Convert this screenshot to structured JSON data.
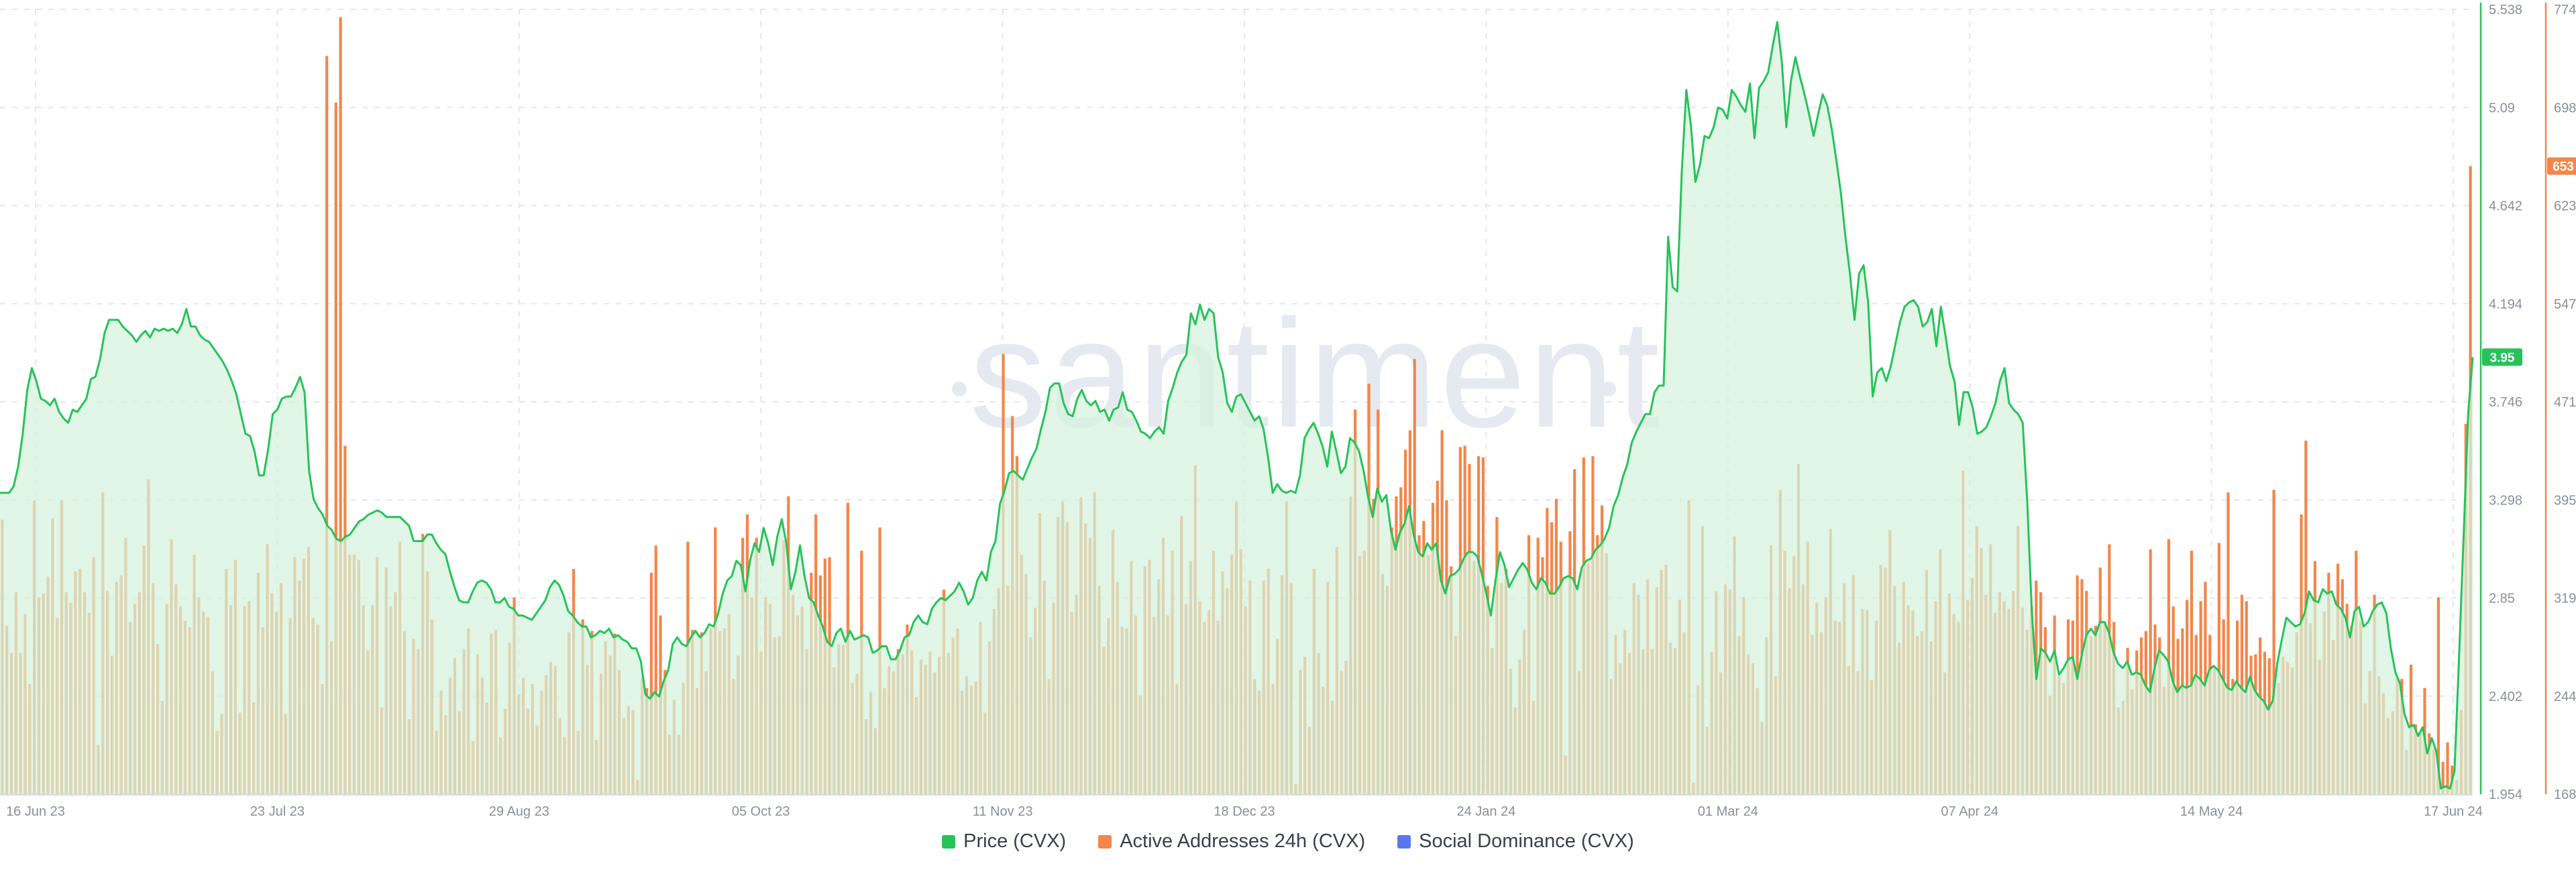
{
  "watermark": "santiment",
  "legend": [
    {
      "label": "Price (CVX)",
      "color": "#26c35a"
    },
    {
      "label": "Active Addresses 24h (CVX)",
      "color": "#f3864a"
    },
    {
      "label": "Social Dominance (CVX)",
      "color": "#5a77ee"
    }
  ],
  "chart_data": {
    "type": "bar+line",
    "x_ticks": [
      "16 Jun 23",
      "23 Jul 23",
      "29 Aug 23",
      "05 Oct 23",
      "11 Nov 23",
      "18 Dec 23",
      "24 Jan 24",
      "01 Mar 24",
      "07 Apr 24",
      "14 May 24",
      "17 Jun 24"
    ],
    "price_axis": {
      "ticks": [
        "5.538",
        "5.09",
        "4.642",
        "4.194",
        "3.746",
        "3.298",
        "2.85",
        "2.402",
        "1.954"
      ],
      "min": 1.954,
      "max": 5.538
    },
    "active_addresses_axis": {
      "ticks": [
        "774",
        "698",
        "623",
        "547",
        "471",
        "395",
        "319",
        "244",
        "168"
      ],
      "min": 168,
      "max": 774
    },
    "current_price_badge": "3.95",
    "current_active_addresses_badge": "653",
    "series": [
      {
        "name": "Price (CVX)",
        "color": "#26c35a",
        "values": [
          3.33,
          3.33,
          3.33,
          3.36,
          3.45,
          3.6,
          3.8,
          3.9,
          3.84,
          3.76,
          3.75,
          3.73,
          3.76,
          3.7,
          3.67,
          3.65,
          3.71,
          3.7,
          3.73,
          3.76,
          3.85,
          3.86,
          3.94,
          4.06,
          4.12,
          4.12,
          4.12,
          4.09,
          4.07,
          4.05,
          4.02,
          4.05,
          4.07,
          4.04,
          4.08,
          4.07,
          4.08,
          4.07,
          4.08,
          4.06,
          4.1,
          4.17,
          4.09,
          4.09,
          4.05,
          4.03,
          4.02,
          3.99,
          3.96,
          3.93,
          3.89,
          3.84,
          3.78,
          3.69,
          3.6,
          3.59,
          3.52,
          3.41,
          3.41,
          3.53,
          3.69,
          3.71,
          3.76,
          3.77,
          3.77,
          3.81,
          3.86,
          3.79,
          3.43,
          3.3,
          3.26,
          3.23,
          3.18,
          3.16,
          3.12,
          3.11,
          3.13,
          3.14,
          3.17,
          3.2,
          3.21,
          3.23,
          3.24,
          3.25,
          3.24,
          3.22,
          3.22,
          3.22,
          3.22,
          3.2,
          3.18,
          3.11,
          3.11,
          3.11,
          3.14,
          3.14,
          3.1,
          3.07,
          3.05,
          2.97,
          2.9,
          2.84,
          2.83,
          2.83,
          2.88,
          2.92,
          2.93,
          2.92,
          2.89,
          2.83,
          2.83,
          2.85,
          2.81,
          2.8,
          2.77,
          2.77,
          2.76,
          2.75,
          2.78,
          2.81,
          2.84,
          2.9,
          2.93,
          2.91,
          2.86,
          2.79,
          2.77,
          2.74,
          2.72,
          2.72,
          2.67,
          2.68,
          2.7,
          2.69,
          2.71,
          2.67,
          2.68,
          2.66,
          2.65,
          2.62,
          2.62,
          2.56,
          2.41,
          2.39,
          2.42,
          2.4,
          2.47,
          2.52,
          2.64,
          2.67,
          2.64,
          2.63,
          2.67,
          2.7,
          2.67,
          2.69,
          2.73,
          2.72,
          2.78,
          2.87,
          2.93,
          2.95,
          3.02,
          3.0,
          2.88,
          3.02,
          3.1,
          3.06,
          3.17,
          3.1,
          3.0,
          3.13,
          3.21,
          3.1,
          2.89,
          2.97,
          3.09,
          2.95,
          2.85,
          2.83,
          2.77,
          2.72,
          2.65,
          2.63,
          2.69,
          2.71,
          2.65,
          2.7,
          2.66,
          2.67,
          2.68,
          2.67,
          2.6,
          2.61,
          2.63,
          2.63,
          2.57,
          2.57,
          2.61,
          2.67,
          2.68,
          2.74,
          2.77,
          2.74,
          2.73,
          2.8,
          2.83,
          2.85,
          2.84,
          2.86,
          2.88,
          2.92,
          2.88,
          2.82,
          2.85,
          2.93,
          2.97,
          2.93,
          3.06,
          3.11,
          3.28,
          3.34,
          3.42,
          3.43,
          3.41,
          3.39,
          3.44,
          3.49,
          3.53,
          3.62,
          3.7,
          3.81,
          3.83,
          3.83,
          3.74,
          3.69,
          3.68,
          3.76,
          3.8,
          3.75,
          3.73,
          3.75,
          3.7,
          3.71,
          3.66,
          3.71,
          3.72,
          3.79,
          3.71,
          3.7,
          3.66,
          3.61,
          3.6,
          3.58,
          3.61,
          3.63,
          3.6,
          3.75,
          3.81,
          3.88,
          3.93,
          3.96,
          4.15,
          4.1,
          4.19,
          4.12,
          4.17,
          4.15,
          3.95,
          3.88,
          3.74,
          3.7,
          3.77,
          3.78,
          3.74,
          3.7,
          3.66,
          3.68,
          3.62,
          3.49,
          3.33,
          3.37,
          3.34,
          3.33,
          3.34,
          3.33,
          3.41,
          3.58,
          3.62,
          3.65,
          3.6,
          3.54,
          3.45,
          3.61,
          3.52,
          3.42,
          3.45,
          3.58,
          3.56,
          3.52,
          3.43,
          3.31,
          3.22,
          3.35,
          3.29,
          3.32,
          3.16,
          3.07,
          3.15,
          3.19,
          3.27,
          3.14,
          3.06,
          3.04,
          3.1,
          3.07,
          3.1,
          2.93,
          2.87,
          2.95,
          2.96,
          2.98,
          3.03,
          3.06,
          3.06,
          3.04,
          2.96,
          2.87,
          2.77,
          2.93,
          3.06,
          3.0,
          2.9,
          2.94,
          2.98,
          3.01,
          2.98,
          2.92,
          2.89,
          2.94,
          2.92,
          2.87,
          2.87,
          2.9,
          2.94,
          2.95,
          2.94,
          2.89,
          2.99,
          3.02,
          3.03,
          3.07,
          3.09,
          3.12,
          3.17,
          3.27,
          3.32,
          3.4,
          3.46,
          3.56,
          3.61,
          3.65,
          3.69,
          3.69,
          3.79,
          3.82,
          3.82,
          4.5,
          4.27,
          4.25,
          4.8,
          5.17,
          5.01,
          4.75,
          4.83,
          4.96,
          4.95,
          5.0,
          5.09,
          5.08,
          5.04,
          5.17,
          5.14,
          5.1,
          5.07,
          5.2,
          4.95,
          5.18,
          5.21,
          5.25,
          5.37,
          5.48,
          5.3,
          5.0,
          5.21,
          5.32,
          5.23,
          5.15,
          5.06,
          4.96,
          5.06,
          5.15,
          5.1,
          4.99,
          4.85,
          4.7,
          4.5,
          4.33,
          4.12,
          4.33,
          4.37,
          4.2,
          3.77,
          3.88,
          3.9,
          3.84,
          3.91,
          4.01,
          4.11,
          4.18,
          4.2,
          4.21,
          4.18,
          4.09,
          4.11,
          4.17,
          4.0,
          4.18,
          4.05,
          3.91,
          3.84,
          3.64,
          3.79,
          3.79,
          3.72,
          3.6,
          3.61,
          3.63,
          3.68,
          3.74,
          3.84,
          3.9,
          3.74,
          3.71,
          3.69,
          3.65,
          3.29,
          2.79,
          2.48,
          2.62,
          2.6,
          2.56,
          2.61,
          2.5,
          2.53,
          2.57,
          2.58,
          2.48,
          2.59,
          2.68,
          2.71,
          2.68,
          2.74,
          2.74,
          2.69,
          2.6,
          2.55,
          2.53,
          2.56,
          2.5,
          2.51,
          2.5,
          2.45,
          2.42,
          2.53,
          2.61,
          2.59,
          2.56,
          2.47,
          2.42,
          2.45,
          2.44,
          2.45,
          2.5,
          2.48,
          2.45,
          2.52,
          2.54,
          2.52,
          2.48,
          2.44,
          2.43,
          2.47,
          2.44,
          2.42,
          2.49,
          2.43,
          2.4,
          2.38,
          2.34,
          2.38,
          2.55,
          2.66,
          2.76,
          2.74,
          2.72,
          2.73,
          2.78,
          2.88,
          2.84,
          2.83,
          2.89,
          2.87,
          2.88,
          2.82,
          2.8,
          2.76,
          2.67,
          2.79,
          2.81,
          2.72,
          2.74,
          2.79,
          2.82,
          2.83,
          2.78,
          2.62,
          2.51,
          2.46,
          2.32,
          2.26,
          2.27,
          2.22,
          2.26,
          2.14,
          2.21,
          2.15,
          1.98,
          1.99,
          1.98,
          2.06,
          2.58,
          3.13,
          3.69,
          3.95
        ]
      },
      {
        "name": "Active Addresses 24h (CVX)",
        "color": "#f3864a",
        "values": [
          380,
          298,
          277,
          324,
          277,
          307,
          253,
          395,
          320,
          323,
          336,
          381,
          304,
          395,
          324,
          316,
          340,
          342,
          324,
          308,
          351,
          206,
          401,
          325,
          275,
          332,
          337,
          366,
          301,
          315,
          324,
          360,
          411,
          331,
          284,
          240,
          315,
          365,
          330,
          313,
          302,
          297,
          353,
          320,
          309,
          305,
          263,
          217,
          230,
          342,
          314,
          349,
          231,
          313,
          317,
          239,
          339,
          297,
          361,
          323,
          309,
          331,
          230,
          304,
          351,
          333,
          350,
          359,
          304,
          299,
          253,
          738,
          286,
          702,
          768,
          437,
          353,
          353,
          349,
          314,
          279,
          314,
          351,
          235,
          343,
          313,
          324,
          363,
          294,
          226,
          288,
          280,
          369,
          340,
          303,
          217,
          248,
          229,
          258,
          273,
          232,
          280,
          296,
          209,
          276,
          258,
          239,
          292,
          295,
          212,
          234,
          285,
          320,
          245,
          258,
          234,
          253,
          221,
          248,
          260,
          270,
          267,
          227,
          212,
          293,
          342,
          217,
          303,
          268,
          294,
          210,
          261,
          286,
          275,
          292,
          264,
          227,
          236,
          233,
          179,
          258,
          250,
          339,
          360,
          306,
          264,
          214,
          241,
          214,
          254,
          363,
          295,
          250,
          293,
          263,
          296,
          374,
          294,
          296,
          307,
          257,
          275,
          366,
          384,
          320,
          366,
          278,
          320,
          315,
          289,
          290,
          364,
          398,
          322,
          306,
          313,
          280,
          339,
          384,
          337,
          350,
          351,
          266,
          284,
          283,
          393,
          254,
          261,
          356,
          226,
          247,
          219,
          374,
          250,
          267,
          263,
          280,
          276,
          299,
          279,
          243,
          272,
          268,
          278,
          262,
          274,
          326,
          277,
          289,
          296,
          248,
          259,
          252,
          255,
          301,
          231,
          286,
          311,
          327,
          508,
          329,
          460,
          429,
          353,
          338,
          289,
          312,
          385,
          333,
          257,
          316,
          382,
          394,
          378,
          309,
          322,
          397,
          377,
          366,
          401,
          329,
          282,
          304,
          372,
          332,
          297,
          296,
          348,
          306,
          244,
          344,
          349,
          305,
          334,
          366,
          306,
          356,
          253,
          383,
          315,
          348,
          422,
          317,
          301,
          310,
          356,
          302,
          340,
          327,
          353,
          394,
          357,
          313,
          333,
          257,
          248,
          333,
          342,
          253,
          288,
          337,
          394,
          331,
          176,
          264,
          274,
          220,
          342,
          277,
          251,
          332,
          240,
          359,
          263,
          271,
          398,
          465,
          352,
          356,
          485,
          396,
          465,
          338,
          329,
          374,
          398,
          405,
          434,
          449,
          504,
          368,
          379,
          353,
          393,
          410,
          449,
          395,
          344,
          290,
          436,
          437,
          423,
          348,
          429,
          428,
          329,
          281,
          382,
          331,
          342,
          265,
          235,
          272,
          295,
          368,
          240,
          366,
          351,
          389,
          378,
          396,
          363,
          198,
          371,
          419,
          263,
          428,
          346,
          429,
          368,
          391,
          354,
          257,
          291,
          269,
          295,
          277,
          331,
          322,
          280,
          334,
          280,
          328,
          341,
          345,
          285,
          281,
          318,
          293,
          395,
          177,
          252,
          375,
          220,
          278,
          325,
          262,
          330,
          326,
          367,
          290,
          320,
          276,
          269,
          250,
          224,
          289,
          360,
          259,
          403,
          356,
          327,
          352,
          423,
          330,
          363,
          291,
          316,
          293,
          320,
          373,
          302,
          301,
          331,
          267,
          337,
          263,
          311,
          310,
          256,
          302,
          345,
          343,
          372,
          329,
          285,
          332,
          314,
          310,
          290,
          294,
          341,
          286,
          317,
          357,
          262,
          323,
          307,
          301,
          418,
          318,
          335,
          375,
          358,
          322,
          361,
          308,
          324,
          317,
          311,
          325,
          375,
          312,
          295,
          313,
          333,
          324,
          297,
          244,
          306,
          259,
          254,
          303,
          302,
          337,
          334,
          325,
          290,
          298,
          343,
          301,
          361,
          301,
          235,
          240,
          281,
          249,
          279,
          289,
          294,
          357,
          299,
          289,
          251,
          365,
          313,
          288,
          296,
          318,
          356,
          291,
          317,
          332,
          291,
          267,
          362,
          303,
          401,
          257,
          302,
          322,
          317,
          275,
          276,
          289,
          278,
          273,
          403,
          254,
          274,
          270,
          266,
          293,
          384,
          441,
          300,
          348,
          272,
          309,
          339,
          287,
          346,
          334,
          315,
          298,
          356,
          301,
          238,
          263,
          322,
          259,
          246,
          227,
          232,
          258,
          257,
          202,
          268,
          222,
          216,
          250,
          215,
          203,
          320,
          193,
          208,
          190,
          179,
          233,
          454,
          653
        ]
      }
    ]
  }
}
